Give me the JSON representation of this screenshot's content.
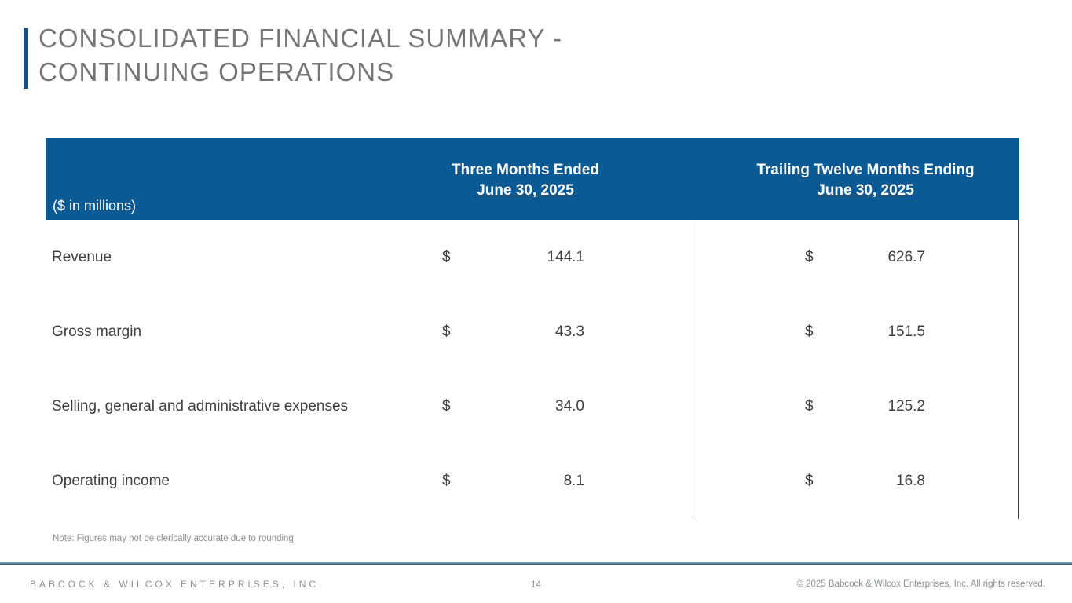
{
  "slide": {
    "title_line1": "CONSOLIDATED FINANCIAL SUMMARY -",
    "title_line2": "CONTINUING OPERATIONS"
  },
  "table": {
    "unit_label": "($ in millions)",
    "columns": [
      {
        "line1": "Three Months Ended",
        "line2": "June 30, 2025"
      },
      {
        "line1": "Trailing Twelve Months Ending",
        "line2": "June 30, 2025"
      }
    ],
    "rows": [
      {
        "label": "Revenue",
        "currency": "$",
        "q_value": "144.1",
        "ttm_currency": "$",
        "ttm_value": "626.7"
      },
      {
        "label": "Gross margin",
        "currency": "$",
        "q_value": "43.3",
        "ttm_currency": "$",
        "ttm_value": "151.5"
      },
      {
        "label": "Selling, general and administrative expenses",
        "currency": "$",
        "q_value": "34.0",
        "ttm_currency": "$",
        "ttm_value": "125.2"
      },
      {
        "label": "Operating income",
        "currency": "$",
        "q_value": "8.1",
        "ttm_currency": "$",
        "ttm_value": "16.8"
      }
    ]
  },
  "note": "Note: Figures may not be clerically accurate due to rounding.",
  "footer": {
    "company": "BABCOCK & WILCOX ENTERPRISES, INC.",
    "page_number": "14",
    "copyright": "© 2025 Babcock & Wilcox Enterprises, Inc. All rights reserved."
  },
  "colors": {
    "table_header_bg": "#0b5a94",
    "accent_bar": "#1b4e7e",
    "title_text": "#767676",
    "body_text": "#3f3f3f",
    "footer_text": "#8b9196"
  }
}
